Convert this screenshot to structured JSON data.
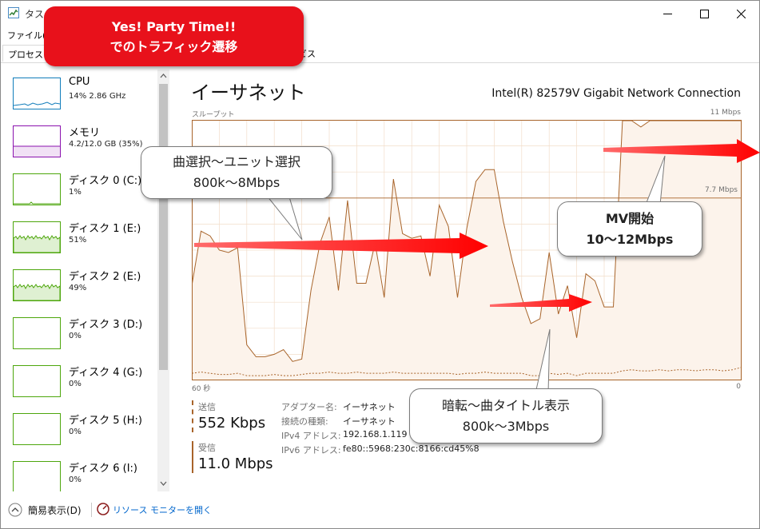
{
  "window": {
    "title": "タスク",
    "menu": [
      "ファイル(F)"
    ],
    "tabs": [
      "プロセス",
      "ビス"
    ]
  },
  "annotation_title": [
    "Yes! Party Time!!",
    "でのトラフィック遷移"
  ],
  "sidebar": {
    "items": [
      {
        "label": "CPU",
        "sub": "14%  2.86 GHz",
        "color": "#117dbb"
      },
      {
        "label": "メモリ",
        "sub": "4.2/12.0 GB (35%)",
        "color": "#8b12ae"
      },
      {
        "label": "ディスク 0 (C:)",
        "sub": "1%",
        "color": "#4da60c"
      },
      {
        "label": "ディスク 1 (E:)",
        "sub": "51%",
        "color": "#4da60c"
      },
      {
        "label": "ディスク 2 (E:)",
        "sub": "49%",
        "color": "#4da60c"
      },
      {
        "label": "ディスク 3 (D:)",
        "sub": "0%",
        "color": "#4da60c"
      },
      {
        "label": "ディスク 4 (G:)",
        "sub": "0%",
        "color": "#4da60c"
      },
      {
        "label": "ディスク 5 (H:)",
        "sub": "0%",
        "color": "#4da60c"
      },
      {
        "label": "ディスク 6 (I:)",
        "sub": "0%",
        "color": "#4da60c"
      }
    ]
  },
  "main": {
    "title": "イーサネット",
    "adapter": "Intel(R) 82579V Gigabit Network Connection",
    "graph": {
      "ylabel": "スループット",
      "max_label": "11 Mbps",
      "mid_label": "7.7 Mbps",
      "x_left": "60 秒",
      "x_right": "0",
      "receive_values": [
        4.0,
        6.3,
        6.1,
        5.5,
        5.4,
        5.6,
        1.5,
        1.0,
        1.0,
        1.1,
        1.3,
        0.8,
        0.9,
        3.8,
        5.8,
        6.9,
        3.8,
        7.6,
        4.1,
        4.1,
        5.8,
        3.5,
        8.5,
        6.2,
        6.0,
        6.1,
        4.4,
        7.4,
        6.5,
        3.5,
        6.4,
        8.4,
        8.9,
        8.9,
        6.7,
        5.0,
        3.5,
        2.4,
        2.6,
        5.4,
        2.8,
        4.0,
        1.8,
        4.5,
        4.2,
        3.1,
        3.1,
        11.0,
        11.0,
        10.7,
        11.0,
        11.0,
        11.0,
        11.0,
        11.0,
        11.0,
        11.0,
        11.0,
        11.0,
        11.0,
        11.0
      ],
      "send_values": [
        0.3,
        0.35,
        0.3,
        0.25,
        0.25,
        0.3,
        0.2,
        0.2,
        0.2,
        0.25,
        0.2,
        0.2,
        0.25,
        0.3,
        0.3,
        0.35,
        0.3,
        0.3,
        0.35,
        0.3,
        0.3,
        0.3,
        0.35,
        0.3,
        0.3,
        0.3,
        0.3,
        0.3,
        0.3,
        0.25,
        0.3,
        0.3,
        0.35,
        0.3,
        0.3,
        0.3,
        0.3,
        0.2,
        0.2,
        0.3,
        0.25,
        0.3,
        0.2,
        0.3,
        0.3,
        0.3,
        0.3,
        0.4,
        0.45,
        0.4,
        0.4,
        0.45,
        0.4,
        0.45,
        0.45,
        0.4,
        0.45,
        0.45,
        0.4,
        0.45,
        0.55
      ]
    },
    "send": {
      "label": "送信",
      "value": "552 Kbps",
      "color": "#a8642a"
    },
    "receive": {
      "label": "受信",
      "value": "11.0 Mbps",
      "color": "#a8642a"
    },
    "info": [
      {
        "key": "アダプター名:",
        "value": "イーサネット"
      },
      {
        "key": "接続の種類:",
        "value": "イーサネット"
      },
      {
        "key": "IPv4 アドレス:",
        "value": "192.168.1.119"
      },
      {
        "key": "IPv6 アドレス:",
        "value": "fe80::5968:230c:8166:cd45%8"
      }
    ]
  },
  "annotations": {
    "bubble1": [
      "曲選択～ユニット選択",
      "800k～8Mbps"
    ],
    "bubble2": [
      "MV開始",
      "10～12Mbps"
    ],
    "bubble3": [
      "暗転～曲タイトル表示",
      "800k～3Mbps"
    ]
  },
  "footer": {
    "compact": "簡易表示(D)",
    "resmon": "リソース モニターを開く"
  },
  "colors": {
    "graph_line": "#a8642a",
    "graph_fill": "#fcf3eb",
    "grid": "#f2ddc9",
    "arrow": "#ff0000",
    "link": "#0066cc"
  }
}
